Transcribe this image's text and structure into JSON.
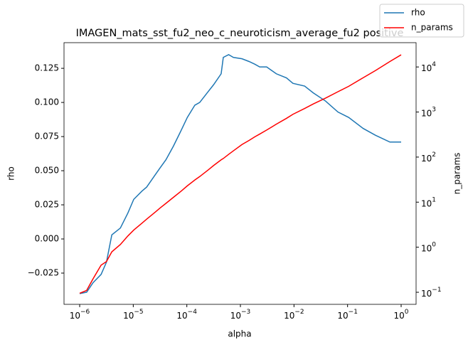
{
  "chart_data": {
    "type": "line",
    "title": "IMAGEN_mats_sst_fu2_neo_c_neuroticism_average_fu2 positive",
    "xlabel": "alpha",
    "ylabel": "rho",
    "y2label": "n_params",
    "xscale": "log",
    "y2scale": "log",
    "xlim": [
      5.1e-07,
      1.9
    ],
    "ylim": [
      -0.0479,
      0.1438
    ],
    "y2lim": [
      0.054,
      34600
    ],
    "xticks": [
      {
        "value": 1e-06,
        "label": "10",
        "exp": "−6"
      },
      {
        "value": 1e-05,
        "label": "10",
        "exp": "−5"
      },
      {
        "value": 0.0001,
        "label": "10",
        "exp": "−4"
      },
      {
        "value": 0.001,
        "label": "10",
        "exp": "−3"
      },
      {
        "value": 0.01,
        "label": "10",
        "exp": "−2"
      },
      {
        "value": 0.1,
        "label": "10",
        "exp": "−1"
      },
      {
        "value": 1,
        "label": "10",
        "exp": "0"
      }
    ],
    "yticks": [
      {
        "value": -0.025,
        "label": "−0.025"
      },
      {
        "value": 0,
        "label": "0.000"
      },
      {
        "value": 0.025,
        "label": "0.025"
      },
      {
        "value": 0.05,
        "label": "0.050"
      },
      {
        "value": 0.075,
        "label": "0.075"
      },
      {
        "value": 0.1,
        "label": "0.100"
      },
      {
        "value": 0.125,
        "label": "0.125"
      }
    ],
    "y2ticks": [
      {
        "value": 0.1,
        "label": "10",
        "exp": "−1"
      },
      {
        "value": 1,
        "label": "10",
        "exp": "0"
      },
      {
        "value": 10,
        "label": "10",
        "exp": "1"
      },
      {
        "value": 100,
        "label": "10",
        "exp": "2"
      },
      {
        "value": 1000,
        "label": "10",
        "exp": "3"
      },
      {
        "value": 10000,
        "label": "10",
        "exp": "4"
      }
    ],
    "legend": "upper right",
    "x": [
      1e-06,
      1.35e-06,
      1.78e-06,
      2.51e-06,
      3.16e-06,
      3.98e-06,
      5.75e-06,
      7.94e-06,
      1.02e-05,
      1.45e-05,
      1.78e-05,
      2.57e-05,
      3.16e-05,
      4.07e-05,
      5.62e-05,
      7.94e-05,
      0.000102,
      0.000141,
      0.000174,
      0.000251,
      0.000316,
      0.000437,
      0.000479,
      0.000603,
      0.000741,
      0.00107,
      0.00145,
      0.00186,
      0.00229,
      0.00309,
      0.00468,
      0.00724,
      0.00955,
      0.0158,
      0.0229,
      0.0389,
      0.0661,
      0.105,
      0.195,
      0.331,
      0.617,
      1
    ],
    "series": [
      {
        "name": "rho",
        "color": "#1f77b4",
        "values": [
          -0.04,
          -0.039,
          -0.032,
          -0.026,
          -0.017,
          0.003,
          0.008,
          0.019,
          0.029,
          0.035,
          0.038,
          0.047,
          0.052,
          0.058,
          0.068,
          0.08,
          0.089,
          0.098,
          0.1,
          0.108,
          0.113,
          0.121,
          0.133,
          0.135,
          0.133,
          0.132,
          0.13,
          0.128,
          0.126,
          0.126,
          0.121,
          0.118,
          0.114,
          0.112,
          0.107,
          0.101,
          0.093,
          0.089,
          0.081,
          0.076,
          0.071,
          0.071
        ]
      },
      {
        "name": "n_params",
        "color": "#ff0000",
        "axis": "y2",
        "values": [
          0.095,
          0.11,
          0.2,
          0.4,
          0.48,
          0.79,
          1.15,
          1.78,
          2.4,
          3.4,
          4.2,
          6.0,
          7.4,
          9.4,
          12.8,
          17.8,
          23,
          31,
          37,
          52,
          65,
          87,
          93,
          115,
          138,
          190,
          234,
          282,
          324,
          398,
          537,
          724,
          891,
          1200,
          1510,
          2040,
          2820,
          3720,
          5750,
          8320,
          13200,
          18600
        ]
      }
    ]
  }
}
